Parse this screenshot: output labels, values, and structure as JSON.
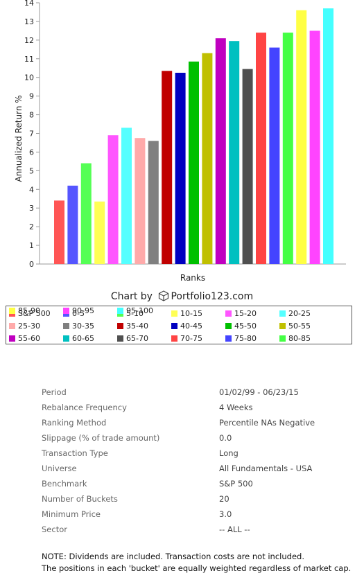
{
  "chart_data": {
    "type": "bar",
    "xlabel": "Ranks",
    "ylabel": "Annualized Return %",
    "ylim": [
      0,
      14
    ],
    "yticks": [
      0,
      1,
      2,
      3,
      4,
      5,
      6,
      7,
      8,
      9,
      10,
      11,
      12,
      13,
      14
    ],
    "grid": false,
    "categories": [
      "S&P 500",
      "0-5",
      "5-10",
      "10-15",
      "15-20",
      "20-25",
      "25-30",
      "30-35",
      "35-40",
      "40-45",
      "45-50",
      "50-55",
      "55-60",
      "60-65",
      "65-70",
      "70-75",
      "75-80",
      "80-85",
      "85-90",
      "90-95",
      "95-100"
    ],
    "values": [
      3.4,
      4.2,
      5.4,
      3.35,
      6.9,
      7.3,
      6.75,
      6.6,
      10.35,
      10.25,
      10.85,
      11.3,
      12.1,
      11.95,
      10.45,
      12.4,
      11.6,
      12.4,
      13.6,
      12.5,
      13.7
    ],
    "colors": [
      "#ff5555",
      "#5555ff",
      "#55ff55",
      "#ffff55",
      "#ff55ff",
      "#55ffff",
      "#ffaaaa",
      "#808080",
      "#c00000",
      "#0000c0",
      "#00c000",
      "#c0c000",
      "#c000c0",
      "#00c0c0",
      "#505050",
      "#ff4444",
      "#4444ff",
      "#44ff44",
      "#ffff44",
      "#ff44ff",
      "#44ffff"
    ],
    "legend_position": "bottom"
  },
  "credit": {
    "prefix": "Chart by",
    "brand": "Portfolio123.com"
  },
  "params": [
    {
      "label": "Period",
      "value": "01/02/99 - 06/23/15"
    },
    {
      "label": "Rebalance Frequency",
      "value": "4 Weeks"
    },
    {
      "label": "Ranking Method",
      "value": "Percentile NAs Negative"
    },
    {
      "label": "Slippage (% of trade amount)",
      "value": "0.0"
    },
    {
      "label": "Transaction Type",
      "value": "Long"
    },
    {
      "label": "Universe",
      "value": "All Fundamentals - USA"
    },
    {
      "label": "Benchmark",
      "value": "S&P 500"
    },
    {
      "label": "Number of Buckets",
      "value": "20"
    },
    {
      "label": "Minimum Price",
      "value": "3.0"
    },
    {
      "label": "Sector",
      "value": "-- ALL --"
    }
  ],
  "note": {
    "line1": "NOTE: Dividends are included. Transaction costs are not included.",
    "line2": "The positions in each 'bucket' are equally weighted regardless of market cap."
  }
}
